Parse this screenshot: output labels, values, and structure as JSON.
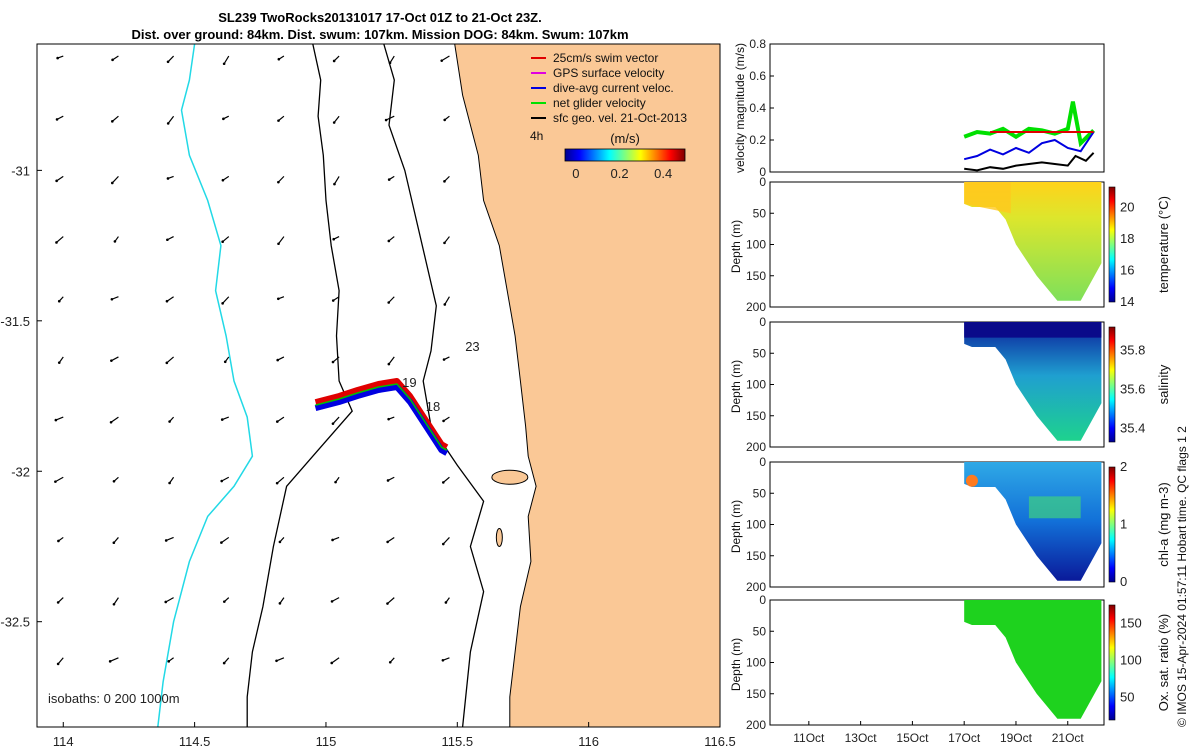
{
  "title_line1": "SL239 TwoRocks20131017 17-Oct 01Z to 21-Oct 23Z.",
  "title_line2": "Dist. over ground: 84km. Dist. swum: 107km. Mission DOG: 84km. Swum: 107km",
  "footer_note": "© IMOS 15-Apr-2024 01:57:11 Hobart time. QC flags 1  2",
  "chart_data": [
    {
      "type": "scatter",
      "panel": "map",
      "xticks": [
        "114",
        "114.5",
        "115",
        "115.5",
        "116",
        "116.5"
      ],
      "yticks": [
        "-31",
        "-31.5",
        "-32",
        "-32.5"
      ],
      "xlim": [
        113.9,
        116.5
      ],
      "ylim": [
        -32.85,
        -30.58
      ],
      "legend_location": "top-right",
      "legend": [
        {
          "label": "25cm/s swim vector",
          "color": "#e00000"
        },
        {
          "label": "GPS surface velocity",
          "color": "#e000e0"
        },
        {
          "label": "dive-avg current veloc.",
          "color": "#0000e0"
        },
        {
          "label": "net glider velocity",
          "color": "#00e000"
        },
        {
          "label": "sfc geo. vel. 21-Oct-2013",
          "color": "#000000"
        }
      ],
      "scale_label": "4h",
      "colorbar": {
        "title": "(m/s)",
        "ticks": [
          "0",
          "0.2",
          "0.4"
        ],
        "range": [
          -0.05,
          0.5
        ]
      },
      "track_labels": [
        {
          "text": "23",
          "lon": 115.53,
          "lat": -31.6
        },
        {
          "text": "19",
          "lon": 115.29,
          "lat": -31.72
        },
        {
          "text": "18",
          "lon": 115.38,
          "lat": -31.8
        }
      ],
      "glider_track": [
        [
          114.96,
          -31.78
        ],
        [
          115.05,
          -31.76
        ],
        [
          115.12,
          -31.74
        ],
        [
          115.2,
          -31.72
        ],
        [
          115.27,
          -31.71
        ],
        [
          115.32,
          -31.76
        ],
        [
          115.38,
          -31.84
        ],
        [
          115.44,
          -31.92
        ],
        [
          115.46,
          -31.93
        ]
      ],
      "isobath_label": "isobaths: 0   200  1000m"
    },
    {
      "type": "line",
      "panel": "velocity",
      "ylabel": "velocity magnitude (m/s)",
      "ylim": [
        0,
        0.8
      ],
      "yticks": [
        "0",
        "0.2",
        "0.4",
        "0.6",
        "0.8"
      ],
      "series": [
        {
          "color": "#00e000",
          "x": [
            17.0,
            17.5,
            18.0,
            18.5,
            19.0,
            19.5,
            20.0,
            20.5,
            21.0,
            21.2,
            21.5,
            22.0
          ],
          "y": [
            0.22,
            0.25,
            0.24,
            0.27,
            0.22,
            0.27,
            0.26,
            0.24,
            0.27,
            0.44,
            0.18,
            0.26
          ]
        },
        {
          "color": "#0000e0",
          "x": [
            17.0,
            17.5,
            18.0,
            18.5,
            19.0,
            19.5,
            20.0,
            20.5,
            21.0,
            21.5,
            22.0
          ],
          "y": [
            0.08,
            0.1,
            0.14,
            0.11,
            0.15,
            0.12,
            0.18,
            0.2,
            0.15,
            0.13,
            0.25
          ]
        },
        {
          "color": "#e00000",
          "x": [
            18.0,
            22.0
          ],
          "y": [
            0.25,
            0.25
          ]
        },
        {
          "color": "#000000",
          "x": [
            17.0,
            17.5,
            18.0,
            18.5,
            19.0,
            19.5,
            20.0,
            20.5,
            21.0,
            21.3,
            21.7,
            22.0
          ],
          "y": [
            0.02,
            0.01,
            0.03,
            0.02,
            0.04,
            0.05,
            0.06,
            0.05,
            0.04,
            0.1,
            0.07,
            0.12
          ]
        }
      ]
    },
    {
      "type": "heatmap",
      "panel": "temperature",
      "ylabel": "Depth (m)",
      "yticks": [
        "0",
        "50",
        "100",
        "150",
        "200"
      ],
      "colorbar_label": "temperature (°C)",
      "colorbar_ticks": [
        "14",
        "16",
        "18",
        "20"
      ],
      "colorbar_range": [
        14,
        21.3
      ]
    },
    {
      "type": "heatmap",
      "panel": "salinity",
      "ylabel": "Depth (m)",
      "yticks": [
        "0",
        "50",
        "100",
        "150",
        "200"
      ],
      "colorbar_label": "salinity",
      "colorbar_ticks": [
        "35.4",
        "35.6",
        "35.8"
      ],
      "colorbar_range": [
        35.33,
        35.92
      ]
    },
    {
      "type": "heatmap",
      "panel": "chlorophyll",
      "ylabel": "Depth (m)",
      "yticks": [
        "0",
        "50",
        "100",
        "150",
        "200"
      ],
      "colorbar_label": "chl-a (mg m-3)",
      "colorbar_ticks": [
        "0",
        "1",
        "2"
      ],
      "colorbar_range": [
        0,
        2
      ]
    },
    {
      "type": "heatmap",
      "panel": "oxygen",
      "ylabel": "Depth (m)",
      "yticks": [
        "0",
        "50",
        "100",
        "150",
        "200"
      ],
      "colorbar_label": "Ox. sat. ratio (%)",
      "colorbar_ticks": [
        "50",
        "100",
        "150"
      ],
      "colorbar_range": [
        20,
        175
      ],
      "xticks": [
        "11Oct",
        "13Oct",
        "15Oct",
        "17Oct",
        "19Oct",
        "21Oct"
      ]
    }
  ]
}
